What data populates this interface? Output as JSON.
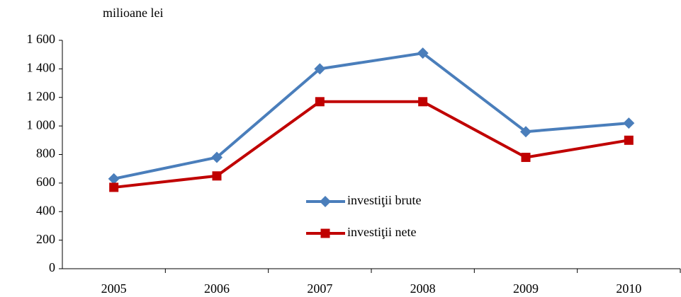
{
  "chart_data": {
    "type": "line",
    "ylabel": "milioane lei",
    "categories": [
      "2005",
      "2006",
      "2007",
      "2008",
      "2009",
      "2010"
    ],
    "series": [
      {
        "name": "investiţii brute",
        "color": "#4a7ebb",
        "marker": "diamond",
        "values": [
          630,
          780,
          1400,
          1510,
          960,
          1020
        ]
      },
      {
        "name": "investiţii nete",
        "color": "#c00000",
        "marker": "square",
        "values": [
          570,
          650,
          1170,
          1170,
          780,
          900
        ]
      }
    ],
    "ylim": [
      0,
      1600
    ],
    "yticks": [
      0,
      200,
      400,
      600,
      800,
      {
        "value": 1000,
        "label": "1 000"
      },
      {
        "value": 1200,
        "label": "1 200"
      },
      {
        "value": 1400,
        "label": "1 400"
      },
      {
        "value": 1600,
        "label": "1 600"
      }
    ],
    "grid": false
  }
}
